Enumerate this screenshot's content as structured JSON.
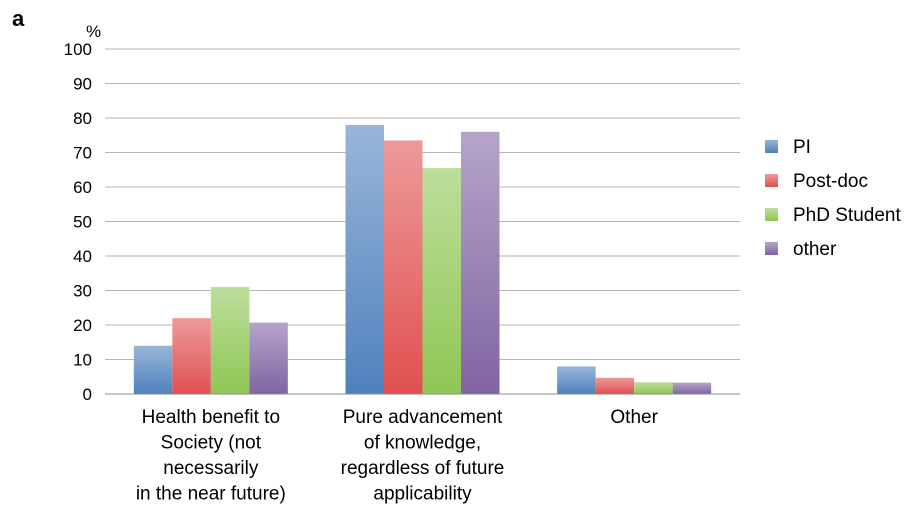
{
  "panel_label": "a",
  "chart_data": {
    "type": "bar",
    "title": "",
    "ylabel": "%",
    "xlabel": "",
    "ylim": [
      0,
      100
    ],
    "yticks": [
      0,
      10,
      20,
      30,
      40,
      50,
      60,
      70,
      80,
      90,
      100
    ],
    "grid": true,
    "legend_position": "right",
    "categories": [
      [
        "Health benefit to",
        "Society (not",
        "necessarily",
        "in the near future)"
      ],
      [
        "Pure advancement",
        "of knowledge,",
        "regardless of future",
        "applicability"
      ],
      [
        "Other"
      ]
    ],
    "series": [
      {
        "name": "PI",
        "color": "#4f81bd",
        "values": [
          14,
          78,
          8
        ]
      },
      {
        "name": "Post-doc",
        "color": "#e05050",
        "values": [
          22,
          73.5,
          4.7
        ]
      },
      {
        "name": "PhD Student",
        "color": "#8fc654",
        "values": [
          31,
          65.5,
          3.4
        ]
      },
      {
        "name": "other",
        "color": "#8064a2",
        "values": [
          20.7,
          76,
          3.3
        ]
      }
    ]
  }
}
